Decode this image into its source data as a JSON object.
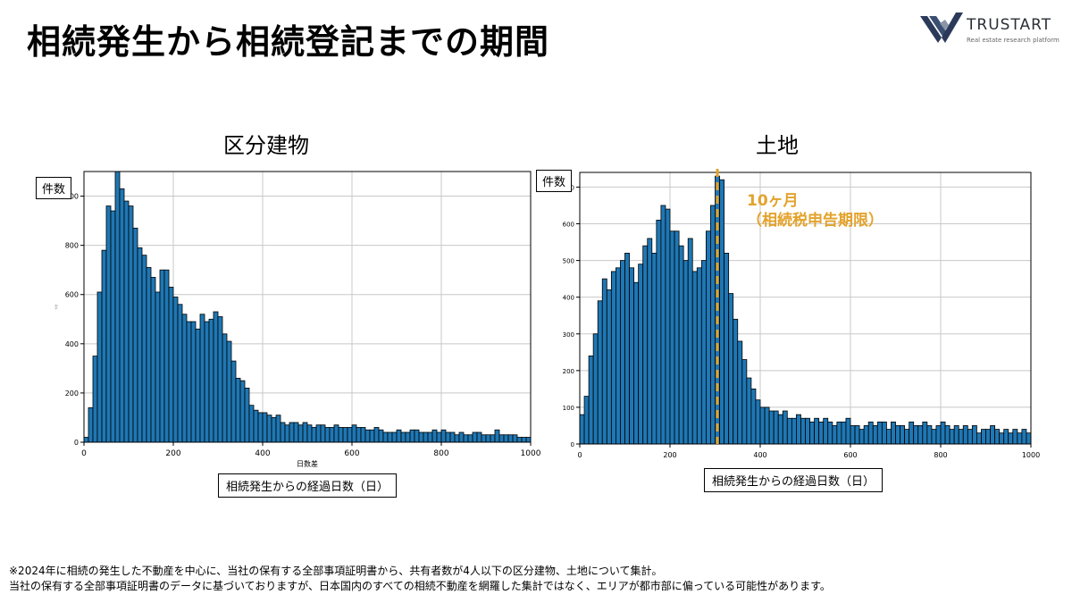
{
  "page": {
    "title": "相続発生から相続登記までの期間",
    "brand": {
      "name": "TRUSTART",
      "tagline": "Real estate research platform"
    },
    "notes": [
      "※2024年に相続の発生した不動産を中心に、当社の保有する全部事項証明書から、共有者数が4人以下の区分建物、土地について集計。",
      "当社の保有する全部事項証明書のデータに基づいておりますが、日本国内のすべての相続不動産を網羅した集計ではなく、エリアが都市部に偏っている可能性があります。"
    ],
    "colors": {
      "bar": "#1f77b4",
      "annotation": "#e3a22a"
    }
  },
  "chart_data": [
    {
      "type": "bar",
      "title": "区分建物",
      "ylabel": "件数",
      "xlabel": "相続発生からの経過日数（日）",
      "xlabel_small": "日数差",
      "ylabel_small": "件数",
      "bin_width": 10,
      "xlim": [
        0,
        1000
      ],
      "ylim": [
        0,
        1100
      ],
      "xticks": [
        0,
        200,
        400,
        600,
        800,
        1000
      ],
      "yticks": [
        0,
        200,
        400,
        600,
        800,
        1000
      ],
      "grid": true,
      "values": [
        20,
        140,
        350,
        610,
        780,
        960,
        940,
        1100,
        1030,
        980,
        960,
        870,
        790,
        760,
        710,
        670,
        610,
        700,
        700,
        630,
        590,
        560,
        520,
        490,
        490,
        460,
        520,
        490,
        500,
        530,
        510,
        440,
        410,
        330,
        260,
        250,
        220,
        150,
        130,
        120,
        120,
        110,
        100,
        110,
        80,
        70,
        80,
        80,
        70,
        80,
        70,
        60,
        70,
        70,
        60,
        60,
        70,
        60,
        60,
        60,
        70,
        60,
        60,
        50,
        50,
        60,
        50,
        40,
        40,
        40,
        50,
        40,
        40,
        50,
        50,
        40,
        40,
        40,
        50,
        40,
        50,
        40,
        40,
        30,
        40,
        30,
        30,
        40,
        40,
        30,
        30,
        30,
        50,
        30,
        30,
        30,
        30,
        20,
        20,
        20
      ]
    },
    {
      "type": "bar",
      "title": "土地",
      "ylabel": "件数",
      "xlabel": "相続発生からの経過日数（日）",
      "bin_width": 10,
      "xlim": [
        0,
        1000
      ],
      "ylim": [
        0,
        740
      ],
      "xticks": [
        0,
        200,
        400,
        600,
        800,
        1000
      ],
      "yticks": [
        0,
        100,
        200,
        300,
        400,
        500,
        600,
        700
      ],
      "grid": true,
      "reference_line": {
        "x": 305,
        "label_line1": "10ヶ月",
        "label_line2": "（相続税申告期限）"
      },
      "values": [
        80,
        130,
        240,
        300,
        390,
        450,
        420,
        470,
        480,
        500,
        520,
        480,
        440,
        490,
        540,
        560,
        520,
        610,
        650,
        640,
        580,
        580,
        540,
        500,
        560,
        470,
        480,
        500,
        580,
        650,
        730,
        720,
        520,
        410,
        340,
        280,
        230,
        180,
        150,
        120,
        100,
        100,
        90,
        90,
        80,
        90,
        70,
        70,
        80,
        70,
        70,
        60,
        70,
        60,
        70,
        60,
        50,
        60,
        60,
        70,
        50,
        50,
        40,
        50,
        60,
        50,
        60,
        60,
        40,
        60,
        50,
        50,
        40,
        60,
        50,
        50,
        60,
        50,
        40,
        50,
        60,
        50,
        40,
        50,
        40,
        50,
        40,
        50,
        30,
        40,
        40,
        50,
        40,
        30,
        40,
        30,
        40,
        30,
        40,
        30
      ]
    }
  ]
}
